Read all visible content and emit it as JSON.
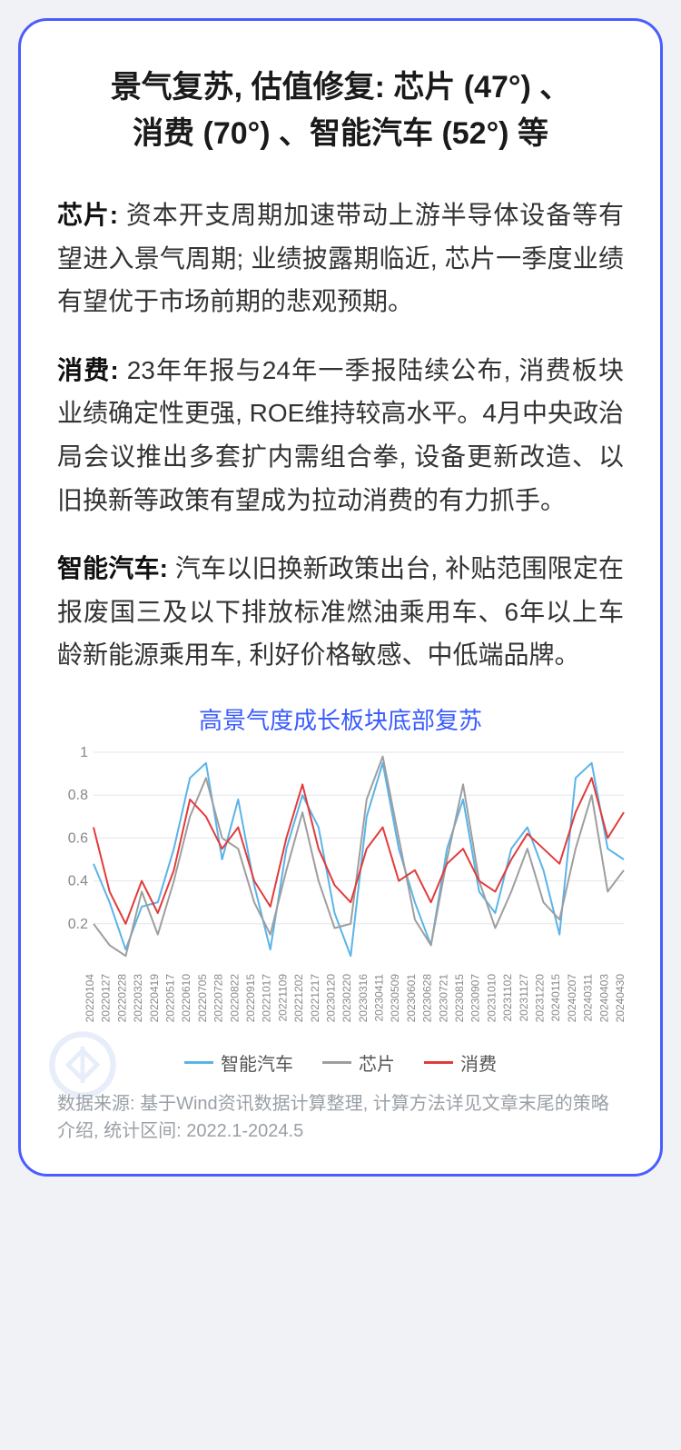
{
  "title_line1": "景气复苏, 估值修复: 芯片 (47°) 、",
  "title_line2": "消费 (70°) 、智能汽车 (52°) 等",
  "paragraphs": [
    {
      "label": "芯片: ",
      "text": "资本开支周期加速带动上游半导体设备等有望进入景气周期; 业绩披露期临近, 芯片一季度业绩有望优于市场前期的悲观预期。"
    },
    {
      "label": "消费: ",
      "text": "23年年报与24年一季报陆续公布, 消费板块业绩确定性更强, ROE维持较高水平。4月中央政治局会议推出多套扩内需组合拳, 设备更新改造、以旧换新等政策有望成为拉动消费的有力抓手。"
    },
    {
      "label": "智能汽车: ",
      "text": "汽车以旧换新政策出台, 补贴范围限定在报废国三及以下排放标准燃油乘用车、6年以上车龄新能源乘用车, 利好价格敏感、中低端品牌。"
    }
  ],
  "chart": {
    "title": "高景气度成长板块底部复苏",
    "type": "line",
    "title_color": "#3a5cff",
    "background_color": "#ffffff",
    "grid_color": "#e4e6eb",
    "ylim": [
      0,
      1
    ],
    "yticks": [
      0.2,
      0.4,
      0.6,
      0.8,
      1
    ],
    "ytick_labels": [
      "0.2",
      "0.4",
      "0.6",
      "0.8",
      "1"
    ],
    "x_labels": [
      "20220104",
      "20220127",
      "20220228",
      "20220323",
      "20220419",
      "20220517",
      "20220610",
      "20220705",
      "20220728",
      "20220822",
      "20220915",
      "20221017",
      "20221109",
      "20221202",
      "20221217",
      "20230120",
      "20230220",
      "20230316",
      "20230411",
      "20230509",
      "20230601",
      "20230628",
      "20230721",
      "20230815",
      "20230907",
      "20231010",
      "20231102",
      "20231127",
      "20231220",
      "20240115",
      "20240207",
      "20240311",
      "20240403",
      "20240430"
    ],
    "series": [
      {
        "name": "智能汽车",
        "color": "#5ab4e8",
        "line_width": 2,
        "values": [
          0.48,
          0.3,
          0.08,
          0.28,
          0.3,
          0.55,
          0.88,
          0.95,
          0.5,
          0.78,
          0.38,
          0.08,
          0.55,
          0.8,
          0.65,
          0.25,
          0.05,
          0.7,
          0.95,
          0.55,
          0.3,
          0.1,
          0.55,
          0.78,
          0.35,
          0.25,
          0.55,
          0.65,
          0.45,
          0.15,
          0.88,
          0.95,
          0.55,
          0.5
        ]
      },
      {
        "name": "芯片",
        "color": "#9e9e9e",
        "line_width": 2,
        "values": [
          0.2,
          0.1,
          0.05,
          0.35,
          0.15,
          0.4,
          0.7,
          0.88,
          0.6,
          0.55,
          0.3,
          0.15,
          0.45,
          0.72,
          0.4,
          0.18,
          0.2,
          0.78,
          0.98,
          0.6,
          0.22,
          0.1,
          0.5,
          0.85,
          0.4,
          0.18,
          0.35,
          0.55,
          0.3,
          0.22,
          0.55,
          0.8,
          0.35,
          0.45
        ]
      },
      {
        "name": "消费",
        "color": "#e23b3b",
        "line_width": 2,
        "values": [
          0.65,
          0.35,
          0.2,
          0.4,
          0.25,
          0.45,
          0.78,
          0.7,
          0.55,
          0.65,
          0.4,
          0.28,
          0.6,
          0.85,
          0.55,
          0.38,
          0.3,
          0.55,
          0.65,
          0.4,
          0.45,
          0.3,
          0.48,
          0.55,
          0.4,
          0.35,
          0.5,
          0.62,
          0.55,
          0.48,
          0.72,
          0.88,
          0.6,
          0.72
        ]
      }
    ],
    "legend_items": [
      {
        "label": "智能汽车",
        "color": "#5ab4e8"
      },
      {
        "label": "芯片",
        "color": "#9e9e9e"
      },
      {
        "label": "消费",
        "color": "#e23b3b"
      }
    ]
  },
  "footnote": "数据来源: 基于Wind资讯数据计算整理, 计算方法详见文章末尾的策略介绍, 统计区间: 2022.1-2024.5",
  "watermark_color": "#4a78d6"
}
